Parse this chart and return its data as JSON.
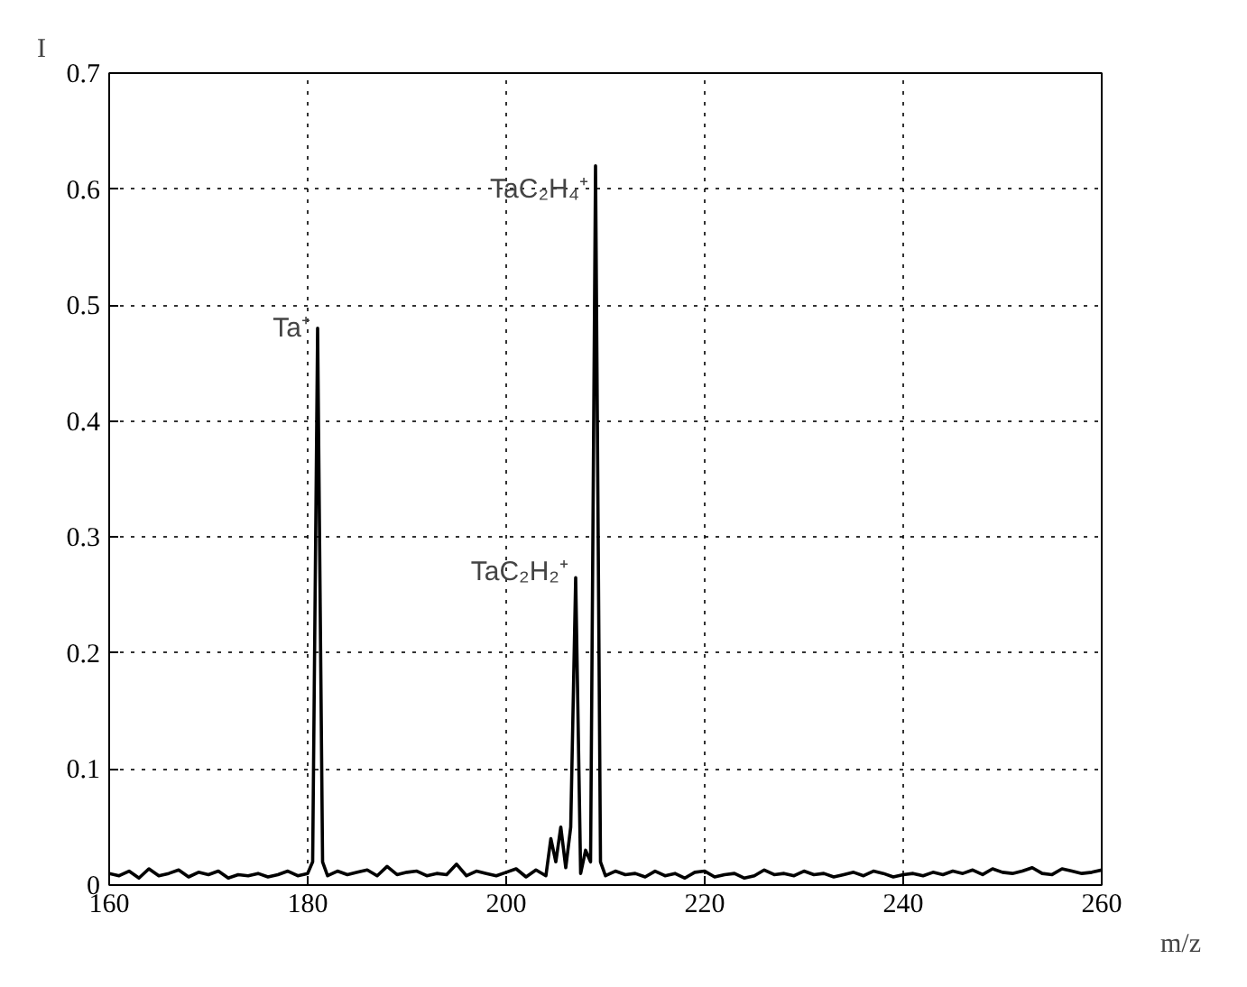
{
  "chart_data": {
    "type": "line",
    "xlabel": "m/z",
    "ylabel": "I",
    "x": [
      160,
      161,
      162,
      163,
      164,
      165,
      166,
      167,
      168,
      169,
      170,
      171,
      172,
      173,
      174,
      175,
      176,
      177,
      178,
      179,
      180,
      180.5,
      181,
      181.5,
      182,
      183,
      184,
      185,
      186,
      187,
      188,
      189,
      190,
      191,
      192,
      193,
      194,
      195,
      196,
      197,
      198,
      199,
      200,
      201,
      202,
      203,
      204,
      204.5,
      205,
      205.5,
      206,
      206.5,
      207,
      207.5,
      208,
      208.5,
      209,
      209.5,
      210,
      211,
      212,
      213,
      214,
      215,
      216,
      217,
      218,
      219,
      220,
      221,
      222,
      223,
      224,
      225,
      226,
      227,
      228,
      229,
      230,
      231,
      232,
      233,
      234,
      235,
      236,
      237,
      238,
      239,
      240,
      241,
      242,
      243,
      244,
      245,
      246,
      247,
      248,
      249,
      250,
      251,
      252,
      253,
      254,
      255,
      256,
      257,
      258,
      259,
      260
    ],
    "series": [
      {
        "color": "#000000",
        "values": [
          0.01,
          0.008,
          0.012,
          0.006,
          0.014,
          0.008,
          0.01,
          0.013,
          0.007,
          0.011,
          0.009,
          0.012,
          0.006,
          0.009,
          0.008,
          0.01,
          0.007,
          0.009,
          0.012,
          0.008,
          0.01,
          0.02,
          0.48,
          0.02,
          0.008,
          0.012,
          0.009,
          0.011,
          0.013,
          0.008,
          0.016,
          0.009,
          0.011,
          0.012,
          0.008,
          0.01,
          0.009,
          0.018,
          0.008,
          0.012,
          0.01,
          0.008,
          0.011,
          0.014,
          0.007,
          0.013,
          0.008,
          0.04,
          0.02,
          0.05,
          0.015,
          0.05,
          0.265,
          0.01,
          0.03,
          0.02,
          0.62,
          0.02,
          0.008,
          0.012,
          0.009,
          0.01,
          0.007,
          0.012,
          0.008,
          0.01,
          0.006,
          0.011,
          0.012,
          0.007,
          0.009,
          0.01,
          0.006,
          0.008,
          0.013,
          0.009,
          0.01,
          0.008,
          0.012,
          0.009,
          0.01,
          0.007,
          0.009,
          0.011,
          0.008,
          0.012,
          0.01,
          0.007,
          0.009,
          0.01,
          0.008,
          0.011,
          0.009,
          0.012,
          0.01,
          0.013,
          0.009,
          0.014,
          0.011,
          0.01,
          0.012,
          0.015,
          0.01,
          0.009,
          0.014,
          0.012,
          0.01,
          0.011,
          0.013
        ]
      }
    ],
    "xlim": [
      160,
      260
    ],
    "ylim": [
      0,
      0.7
    ],
    "xticks": [
      160,
      180,
      200,
      220,
      240,
      260
    ],
    "yticks": [
      0,
      0.1,
      0.2,
      0.3,
      0.4,
      0.5,
      0.6,
      0.7
    ],
    "grid": true,
    "marker": "none",
    "line_style": "solid",
    "annotations": [
      {
        "text": "Ta⁺",
        "x": 181,
        "y": 0.48
      },
      {
        "text": "TaC₂H₄⁺",
        "x": 209,
        "y": 0.6
      },
      {
        "text": "TaC₂H₂⁺",
        "x": 207,
        "y": 0.27
      }
    ]
  }
}
